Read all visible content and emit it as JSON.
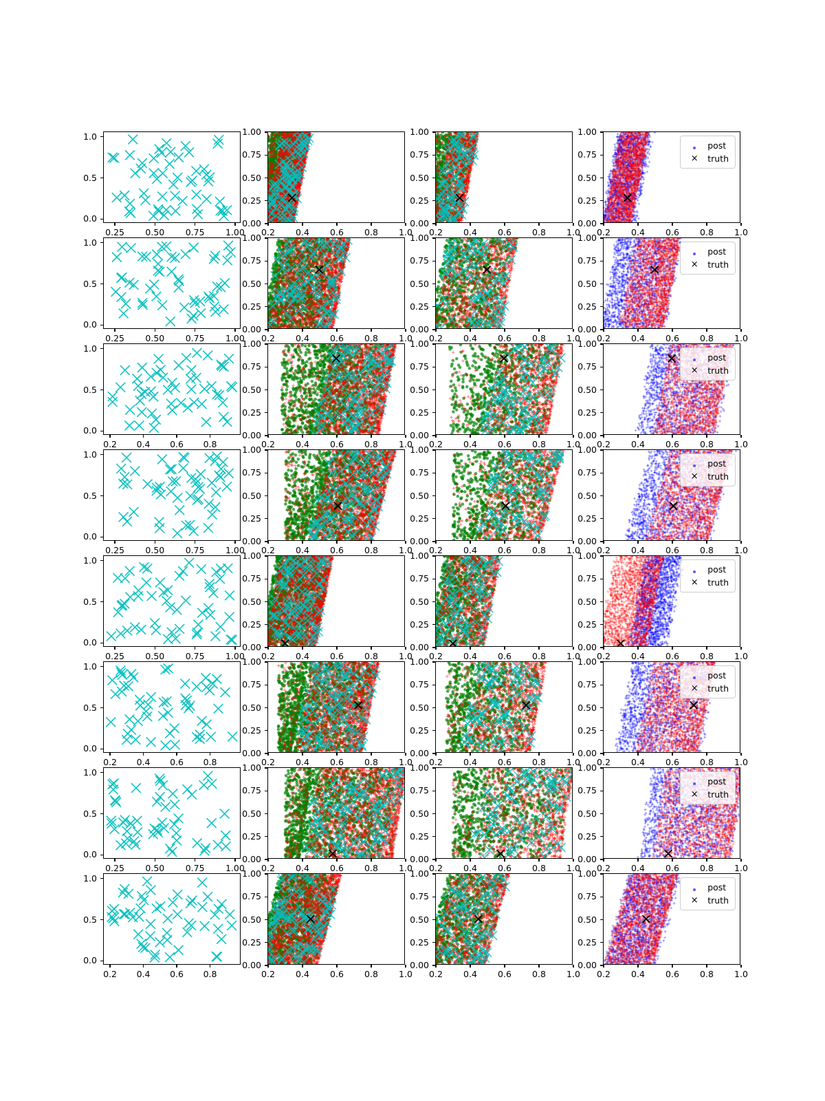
{
  "figure": {
    "title": "",
    "background": "#ffffff",
    "legend": {
      "post_label": "post",
      "truth_label": "truth"
    },
    "colors": {
      "design_cross": "#00bfbf",
      "sim_green_circle": "#008000",
      "sim_red_plus": "#ff0000",
      "post_blue": "#0000ff",
      "post_red": "#ff0000",
      "truth": "#000000",
      "axis": "#000000",
      "legend_border": "#cccccc"
    }
  },
  "chart_data": {
    "type": "scatter",
    "grid": {
      "rows": 8,
      "cols": 4
    },
    "xlabel": "",
    "ylabel": "",
    "title": "",
    "axes": {
      "col1_yticks": [
        "0.0",
        "0.5",
        "1.0"
      ],
      "col1_xticks_A": [
        "0.25",
        "0.50",
        "0.75",
        "1.00"
      ],
      "col1_xticks_B": [
        "0.2",
        "0.4",
        "0.6",
        "0.8"
      ],
      "dense_xticks": [
        "0.2",
        "0.4",
        "0.6",
        "0.8",
        "1.0"
      ],
      "dense_yticks": [
        "0.00",
        "0.25",
        "0.50",
        "0.75",
        "1.00"
      ],
      "dense_xlim": [
        0.2,
        1.0
      ],
      "dense_ylim": [
        0.0,
        1.0
      ]
    },
    "columns": [
      {
        "name": "design-points",
        "series": [
          {
            "name": "design",
            "marker": "x",
            "color": "#00bfbf"
          }
        ]
      },
      {
        "name": "simulation-full",
        "series": [
          {
            "name": "green-circles",
            "marker": "o",
            "color": "#008000"
          },
          {
            "name": "red-plus",
            "marker": "+",
            "color": "#ff0000"
          },
          {
            "name": "cyan-cross",
            "marker": "x",
            "color": "#00bfbf"
          },
          {
            "name": "truth",
            "marker": "x",
            "color": "#000000"
          }
        ]
      },
      {
        "name": "simulation-subset",
        "series": [
          {
            "name": "green-circles",
            "marker": "o",
            "color": "#008000"
          },
          {
            "name": "red-plus",
            "marker": "+",
            "color": "#ff0000"
          },
          {
            "name": "cyan-cross",
            "marker": "x",
            "color": "#00bfbf"
          },
          {
            "name": "truth",
            "marker": "x",
            "color": "#000000"
          }
        ]
      },
      {
        "name": "posterior",
        "has_legend": true,
        "series": [
          {
            "name": "post",
            "marker": ".",
            "color": "#0000ff"
          },
          {
            "name": "post-red",
            "marker": "+",
            "color": "#ff0000"
          },
          {
            "name": "truth",
            "marker": "x",
            "color": "#000000"
          }
        ]
      }
    ],
    "rows": [
      {
        "truth": [
          0.34,
          0.27
        ],
        "col1_ticks": "A",
        "col1_xrange": [
          0.22,
          1.0
        ],
        "band": {
          "tail": 0.2,
          "coreW": 0.18,
          "edge": 0.4,
          "slope": 0.1
        },
        "post": {
          "blueE": 0.44,
          "blueW": 0.2,
          "redE": 0.41,
          "redW": 0.16
        }
      },
      {
        "truth": [
          0.5,
          0.65
        ],
        "col1_ticks": "A",
        "col1_xrange": [
          0.22,
          1.0
        ],
        "band": {
          "tail": 0.2,
          "coreW": 0.42,
          "edge": 0.63,
          "slope": 0.1
        },
        "post": {
          "blueE": 0.61,
          "blueW": 0.38,
          "redE": 0.6,
          "redW": 0.26
        }
      },
      {
        "truth": [
          0.6,
          0.84
        ],
        "col1_ticks": "B",
        "col1_xrange": [
          0.2,
          0.95
        ],
        "band": {
          "tail": 0.28,
          "coreW": 0.4,
          "edge": 0.9,
          "slope": 0.1
        },
        "post": {
          "blueE": 0.92,
          "blueW": 0.48,
          "redE": 0.9,
          "redW": 0.36
        }
      },
      {
        "truth": [
          0.61,
          0.38
        ],
        "col1_ticks": "A",
        "col1_xrange": [
          0.22,
          1.0
        ],
        "band": {
          "tail": 0.3,
          "coreW": 0.4,
          "edge": 0.88,
          "slope": 0.14
        },
        "post": {
          "blueE": 0.9,
          "blueW": 0.5,
          "redE": 0.88,
          "redW": 0.36
        }
      },
      {
        "truth": [
          0.3,
          0.03
        ],
        "col1_ticks": "A",
        "col1_xrange": [
          0.22,
          1.0
        ],
        "band": {
          "tail": 0.2,
          "coreW": 0.33,
          "edge": 0.53,
          "slope": 0.1
        },
        "post": {
          "blueE": 0.62,
          "blueW": 0.22,
          "redE": 0.5,
          "redW": 0.28
        }
      },
      {
        "truth": [
          0.73,
          0.52
        ],
        "col1_ticks": "B",
        "col1_xrange": [
          0.2,
          0.95
        ],
        "band": {
          "tail": 0.26,
          "coreW": 0.42,
          "edge": 0.8,
          "slope": 0.1
        },
        "post": {
          "blueE": 0.82,
          "blueW": 0.5,
          "redE": 0.8,
          "redW": 0.36
        }
      },
      {
        "truth": [
          0.58,
          0.05
        ],
        "col1_ticks": "A",
        "col1_xrange": [
          0.22,
          1.0
        ],
        "band": {
          "tail": 0.3,
          "coreW": 0.55,
          "edge": 0.97,
          "slope": 0.08
        },
        "post": {
          "blueE": 1.0,
          "blueW": 0.55,
          "redE": 0.98,
          "redW": 0.45
        }
      },
      {
        "truth": [
          0.45,
          0.5
        ],
        "col1_ticks": "B",
        "col1_xrange": [
          0.2,
          0.95
        ],
        "band": {
          "tail": 0.2,
          "coreW": 0.36,
          "edge": 0.56,
          "slope": 0.14
        },
        "post": {
          "blueE": 0.58,
          "blueW": 0.3,
          "redE": 0.56,
          "redW": 0.28
        }
      }
    ],
    "counts": {
      "col1_crosses": 55,
      "col2": {
        "green": 1400,
        "red": 2000,
        "cyan": 110
      },
      "col3": {
        "green": 800,
        "red": 1100,
        "cyan": 80
      },
      "col4": {
        "blue": 1600,
        "red": 1800
      }
    }
  }
}
